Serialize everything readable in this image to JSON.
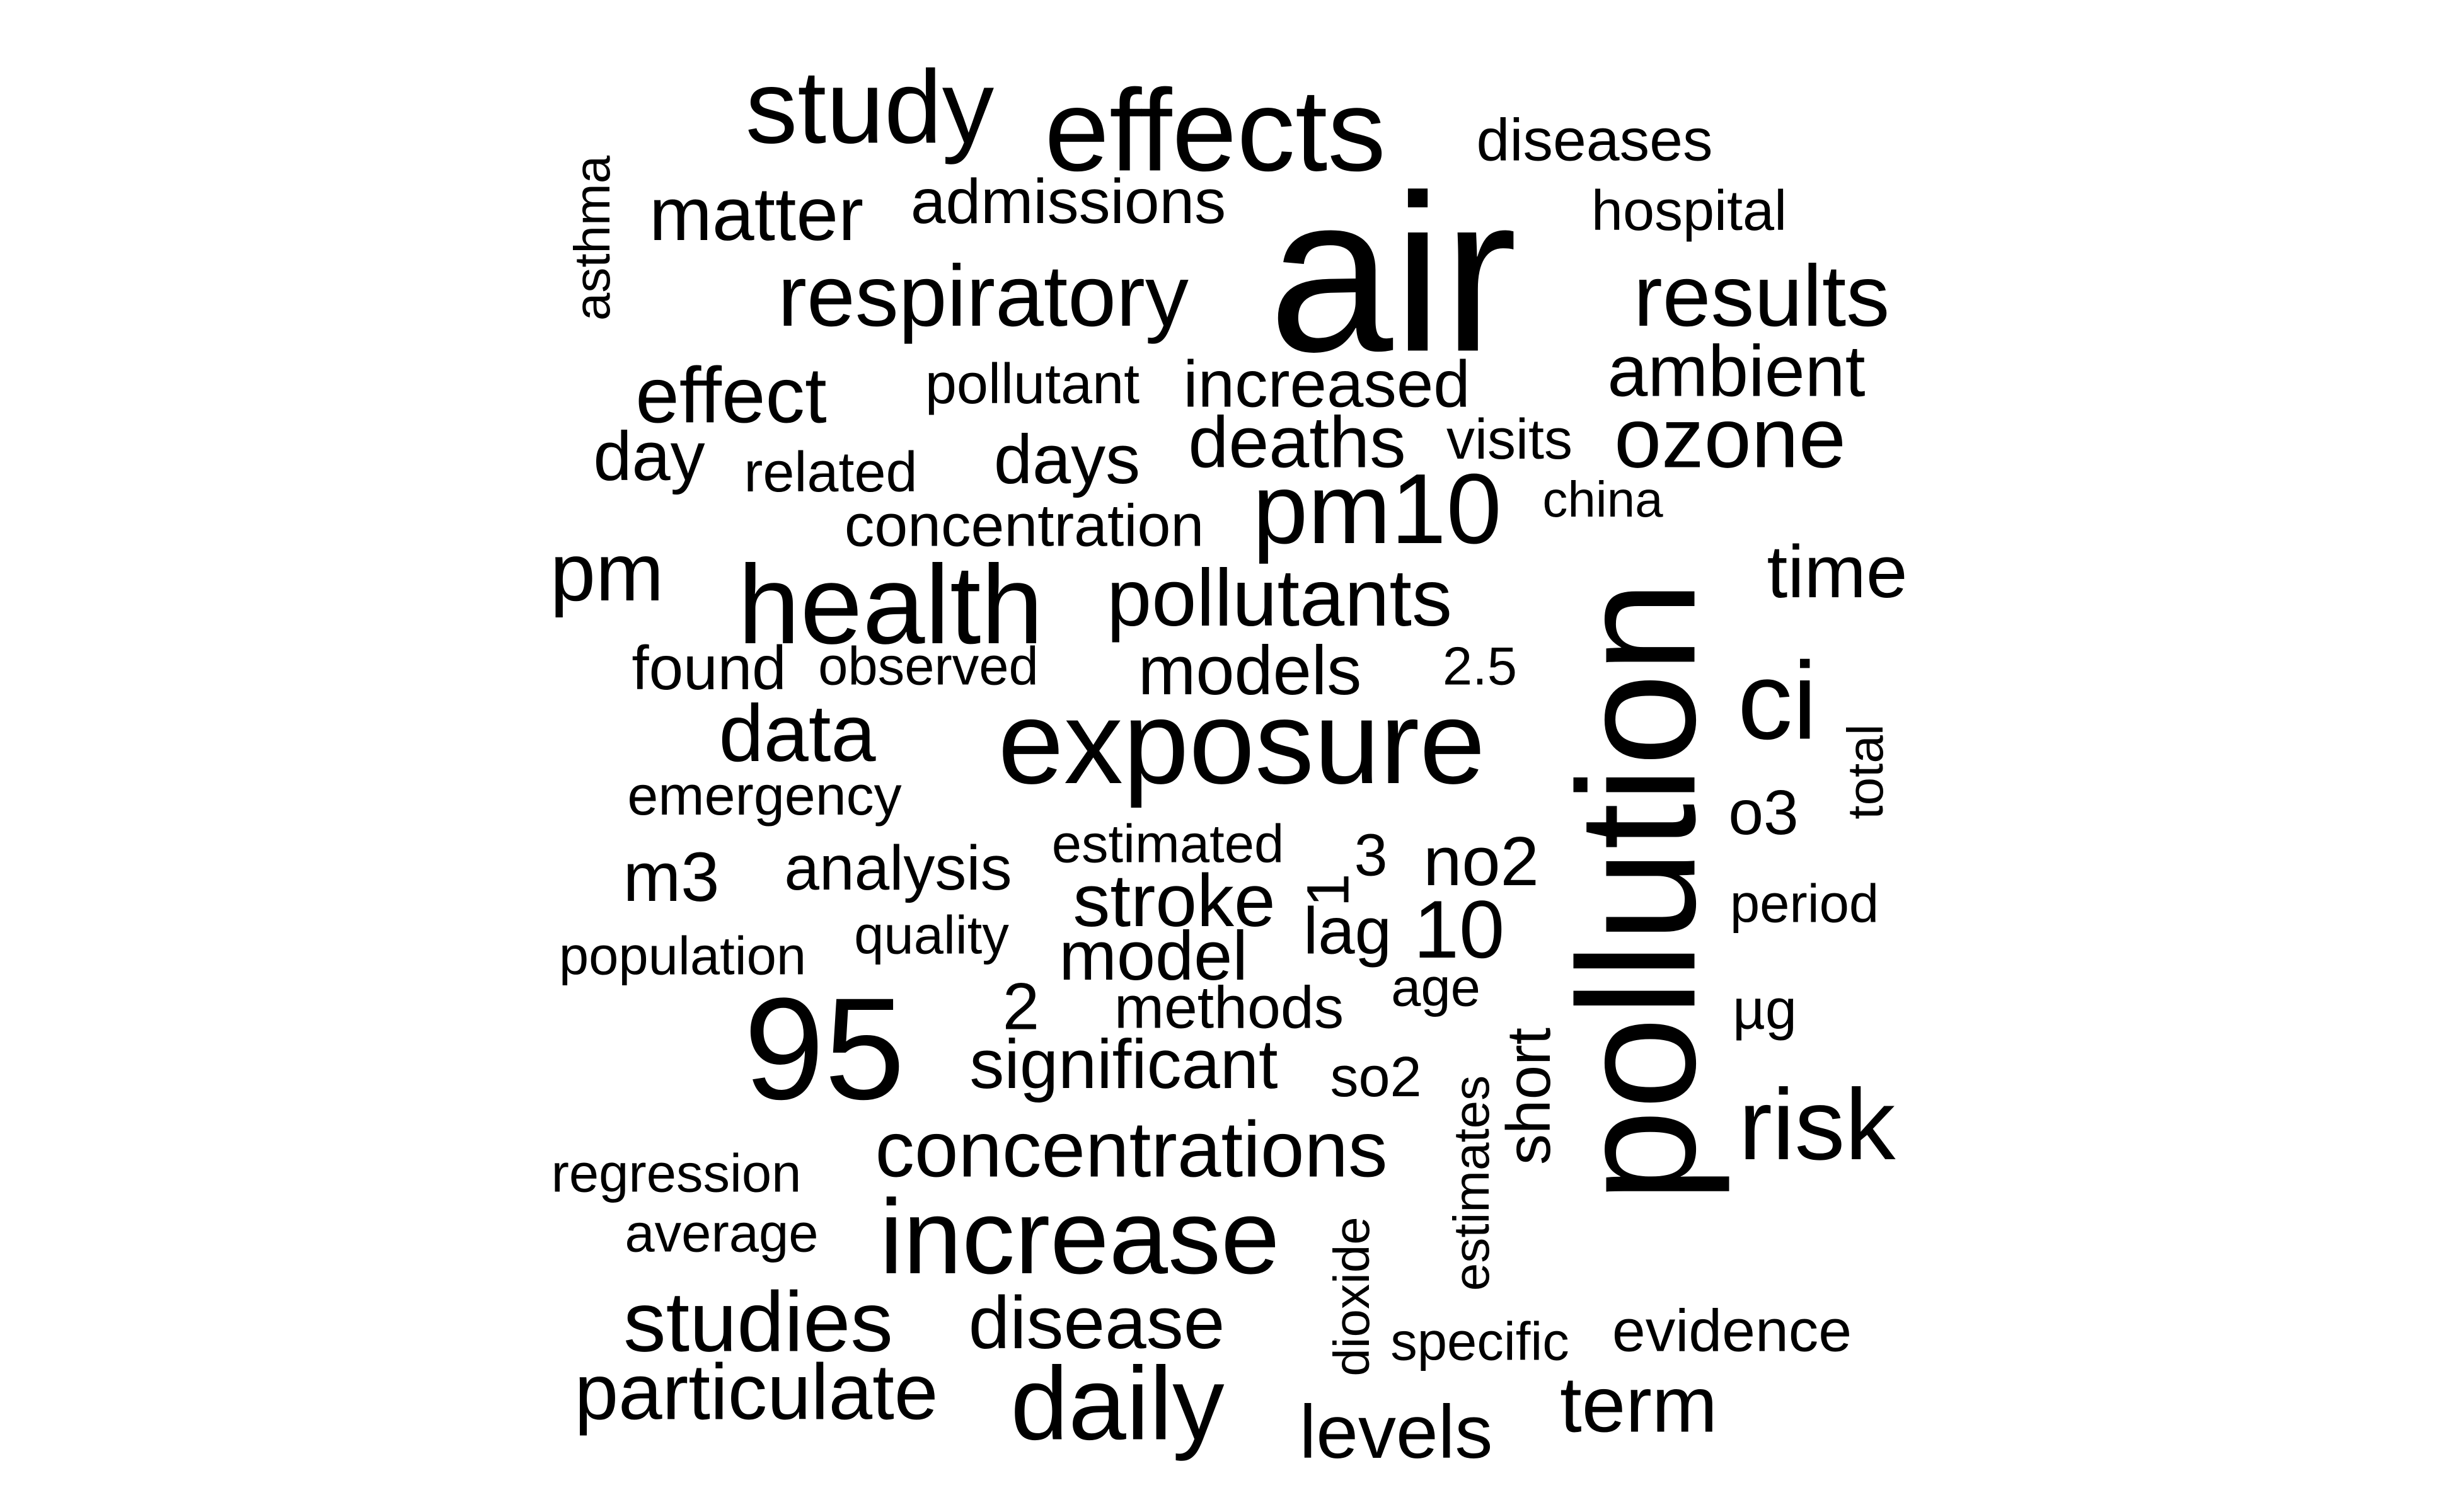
{
  "word_cloud": {
    "text_color": "#000000",
    "background_color": "#ffffff",
    "words": [
      {
        "text": "air",
        "vertical": false
      },
      {
        "text": "pollution",
        "vertical": true
      },
      {
        "text": "exposure",
        "vertical": false
      },
      {
        "text": "effects",
        "vertical": false
      },
      {
        "text": "95",
        "vertical": false
      },
      {
        "text": "health",
        "vertical": false
      },
      {
        "text": "increase",
        "vertical": false
      },
      {
        "text": "study",
        "vertical": false
      },
      {
        "text": "daily",
        "vertical": false
      },
      {
        "text": "pm10",
        "vertical": false
      },
      {
        "text": "risk",
        "vertical": false
      },
      {
        "text": "ci",
        "vertical": false
      },
      {
        "text": "respiratory",
        "vertical": false
      },
      {
        "text": "results",
        "vertical": false
      },
      {
        "text": "ozone",
        "vertical": false
      },
      {
        "text": "pollutants",
        "vertical": false
      },
      {
        "text": "concentrations",
        "vertical": false
      },
      {
        "text": "studies",
        "vertical": false
      },
      {
        "text": "particulate",
        "vertical": false
      },
      {
        "text": "term",
        "vertical": false
      },
      {
        "text": "data",
        "vertical": false
      },
      {
        "text": "pm",
        "vertical": false
      },
      {
        "text": "effect",
        "vertical": false
      },
      {
        "text": "10",
        "vertical": false
      },
      {
        "text": "matter",
        "vertical": false
      },
      {
        "text": "disease",
        "vertical": false
      },
      {
        "text": "significant",
        "vertical": false
      },
      {
        "text": "levels",
        "vertical": false
      },
      {
        "text": "stroke",
        "vertical": false
      },
      {
        "text": "time",
        "vertical": false
      },
      {
        "text": "deaths",
        "vertical": false
      },
      {
        "text": "short",
        "vertical": true
      },
      {
        "text": "ambient",
        "vertical": false
      },
      {
        "text": "days",
        "vertical": false
      },
      {
        "text": "day",
        "vertical": false
      },
      {
        "text": "models",
        "vertical": false
      },
      {
        "text": "increased",
        "vertical": false
      },
      {
        "text": "model",
        "vertical": false
      },
      {
        "text": "admissions",
        "vertical": false
      },
      {
        "text": "diseases",
        "vertical": false
      },
      {
        "text": "analysis",
        "vertical": false
      },
      {
        "text": "no2",
        "vertical": false
      },
      {
        "text": "lag",
        "vertical": false
      },
      {
        "text": "m3",
        "vertical": false
      },
      {
        "text": "o3",
        "vertical": false
      },
      {
        "text": "evidence",
        "vertical": false
      },
      {
        "text": "hospital",
        "vertical": false
      },
      {
        "text": "pollutant",
        "vertical": false
      },
      {
        "text": "found",
        "vertical": false
      },
      {
        "text": "methods",
        "vertical": false
      },
      {
        "text": "concentration",
        "vertical": false
      },
      {
        "text": "related",
        "vertical": false
      },
      {
        "text": "visits",
        "vertical": false
      },
      {
        "text": "observed",
        "vertical": false
      },
      {
        "text": "emergency",
        "vertical": false
      },
      {
        "text": "estimated",
        "vertical": false
      },
      {
        "text": "2",
        "vertical": false
      },
      {
        "text": "3",
        "vertical": false
      },
      {
        "text": "1",
        "vertical": true
      },
      {
        "text": "so2",
        "vertical": false
      },
      {
        "text": "specific",
        "vertical": false
      },
      {
        "text": "china",
        "vertical": false
      },
      {
        "text": "population",
        "vertical": false
      },
      {
        "text": "quality",
        "vertical": false
      },
      {
        "text": "average",
        "vertical": false
      },
      {
        "text": "regression",
        "vertical": false
      },
      {
        "text": "period",
        "vertical": false
      },
      {
        "text": "2.5",
        "vertical": false
      },
      {
        "text": "age",
        "vertical": false
      },
      {
        "text": "µg",
        "vertical": false
      },
      {
        "text": "asthma",
        "vertical": true
      },
      {
        "text": "total",
        "vertical": true
      },
      {
        "text": "estimates",
        "vertical": true
      },
      {
        "text": "dioxide",
        "vertical": true
      }
    ]
  }
}
